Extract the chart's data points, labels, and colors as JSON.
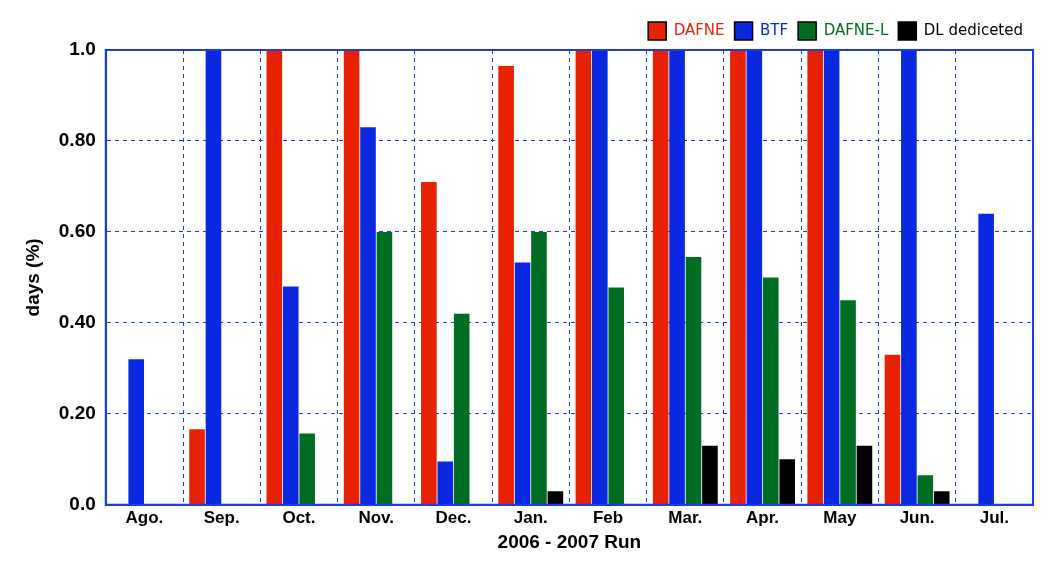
{
  "chart_data": {
    "type": "bar",
    "xlabel": "2006 - 2007 Run",
    "ylabel": "days (%)",
    "categories": [
      "Ago.",
      "Sep.",
      "Oct.",
      "Nov.",
      "Dec.",
      "Jan.",
      "Feb",
      "Mar.",
      "Apr.",
      "May",
      "Jun.",
      "Jul."
    ],
    "series": [
      {
        "name": "DAFNE",
        "color": "#e62200",
        "values": [
          null,
          0.166,
          1.0,
          1.0,
          0.71,
          0.965,
          1.0,
          1.0,
          1.0,
          1.0,
          0.33,
          null
        ]
      },
      {
        "name": "BTF",
        "color": "#0a28e0",
        "values": [
          0.32,
          1.0,
          0.48,
          0.83,
          0.095,
          0.533,
          1.0,
          1.0,
          1.0,
          1.0,
          1.0,
          0.64
        ]
      },
      {
        "name": "DAFNE-L",
        "color": "#006e22",
        "values": [
          null,
          null,
          0.157,
          0.6,
          0.42,
          0.6,
          0.478,
          0.545,
          0.5,
          0.45,
          0.065,
          null
        ]
      },
      {
        "name": "DL dediceted",
        "color": "#000000",
        "values": [
          null,
          null,
          null,
          null,
          null,
          0.03,
          null,
          0.13,
          0.1,
          0.13,
          0.03,
          null
        ]
      }
    ],
    "ylim": [
      0,
      1.0
    ],
    "yticks": [
      {
        "value": 0,
        "label": "0.0"
      },
      {
        "value": 0.2,
        "label": "0.20"
      },
      {
        "value": 0.4,
        "label": "0.40"
      },
      {
        "value": 0.6,
        "label": "0.60"
      },
      {
        "value": 0.8,
        "label": "0.80"
      },
      {
        "value": 1.0,
        "label": "1.0"
      }
    ],
    "grid": true,
    "legend": "top right"
  }
}
